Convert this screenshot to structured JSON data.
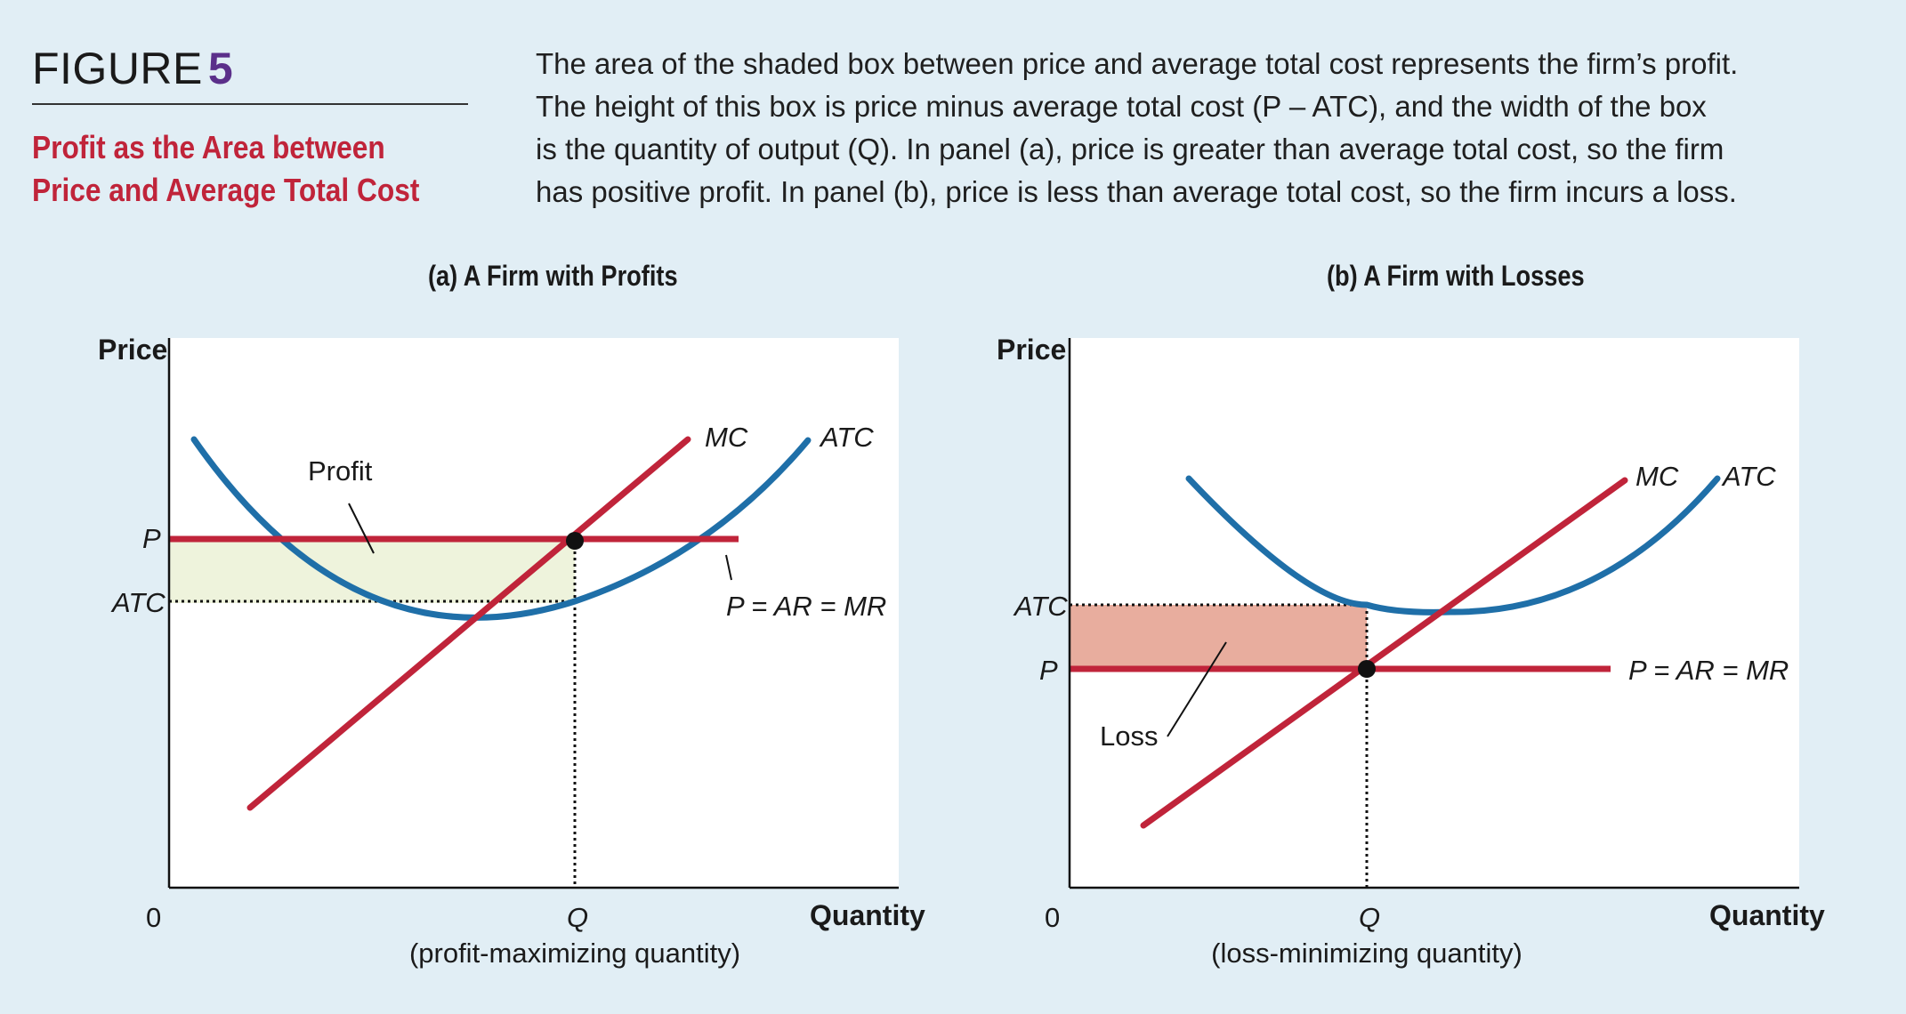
{
  "header": {
    "figure_word": "FIGURE",
    "figure_number": "5",
    "title_line1": "Profit as the Area between",
    "title_line2": "Price and Average Total Cost",
    "caption_line1": "The area of the shaded box between price and average total cost represents the firm’s profit.",
    "caption_line2": "The height of this box is price minus average total cost (P – ATC), and the width of the box",
    "caption_line3": "is the quantity of output (Q). In panel (a), price is greater than average total cost, so the firm",
    "caption_line4": "has positive profit. In panel (b), price is less than average total cost, so the firm incurs a loss."
  },
  "panel_a": {
    "title": "(a) A Firm with Profits",
    "y_axis_label": "Price",
    "x_axis_label": "Quantity",
    "origin_label": "0",
    "tick_p": "P",
    "tick_atc": "ATC",
    "tick_q": "Q",
    "q_note": "(profit-maximizing quantity)",
    "label_mc": "MC",
    "label_atc": "ATC",
    "label_demand": "P = AR = MR",
    "label_area": "Profit"
  },
  "panel_b": {
    "title": "(b) A Firm with Losses",
    "y_axis_label": "Price",
    "x_axis_label": "Quantity",
    "origin_label": "0",
    "tick_p": "P",
    "tick_atc": "ATC",
    "tick_q": "Q",
    "q_note": "(loss-minimizing quantity)",
    "label_mc": "MC",
    "label_atc": "ATC",
    "label_demand": "P = AR = MR",
    "label_area": "Loss"
  },
  "colors": {
    "background": "#e1eef5",
    "atc_curve": "#1f6fa8",
    "mc_curve": "#c0243a",
    "profit_fill": "#eef3dc",
    "loss_fill": "#e8ad9e",
    "title_red": "#c0243a",
    "figure_number_purple": "#5b2f8a"
  }
}
